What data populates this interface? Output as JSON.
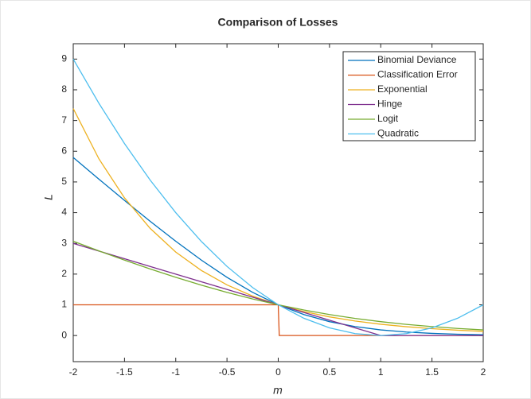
{
  "chart_data": {
    "type": "line",
    "title": "Comparison of Losses",
    "x_label": "m",
    "y_label": "L",
    "x": [
      -2,
      -1.75,
      -1.5,
      -1.25,
      -1,
      -0.75,
      -0.5,
      -0.25,
      0,
      0.25,
      0.5,
      0.75,
      1,
      1.25,
      1.5,
      1.75,
      2
    ],
    "series": [
      {
        "name": "Binomial Deviance",
        "color": "#0072BD",
        "values": [
          5.796,
          5.093,
          4.398,
          3.721,
          3.069,
          2.455,
          1.895,
          1.405,
          1,
          0.684,
          0.452,
          0.291,
          0.183,
          0.114,
          0.07,
          0.043,
          0.026
        ]
      },
      {
        "name": "Classification Error",
        "color": "#D95319",
        "x": [
          -2,
          0,
          0.01,
          2
        ],
        "values": [
          1,
          1,
          0,
          0
        ]
      },
      {
        "name": "Exponential",
        "color": "#EDB120",
        "values": [
          7.389,
          5.755,
          4.482,
          3.49,
          2.718,
          2.117,
          1.649,
          1.284,
          1,
          0.779,
          0.607,
          0.472,
          0.368,
          0.287,
          0.223,
          0.174,
          0.135
        ]
      },
      {
        "name": "Hinge",
        "color": "#7E2F8E",
        "values": [
          3,
          2.75,
          2.5,
          2.25,
          2,
          1.75,
          1.5,
          1.25,
          1,
          0.75,
          0.5,
          0.25,
          0,
          0,
          0,
          0,
          0
        ]
      },
      {
        "name": "Logit",
        "color": "#77AC30",
        "values": [
          3.069,
          2.756,
          2.455,
          2.167,
          1.895,
          1.64,
          1.405,
          1.192,
          1,
          0.831,
          0.684,
          0.558,
          0.452,
          0.363,
          0.291,
          0.231,
          0.183
        ]
      },
      {
        "name": "Quadratic",
        "color": "#4DBEEE",
        "values": [
          9,
          7.5625,
          6.25,
          5.0625,
          4,
          3.0625,
          2.25,
          1.5625,
          1,
          0.5625,
          0.25,
          0.0625,
          0,
          0.0625,
          0.25,
          0.5625,
          1
        ]
      }
    ],
    "xlim": [
      -2,
      2
    ],
    "ylim": [
      -0.85,
      9.5
    ],
    "xticks": [
      -2,
      -1.5,
      -1,
      -0.5,
      0,
      0.5,
      1,
      1.5,
      2
    ],
    "yticks": [
      0,
      1,
      2,
      3,
      4,
      5,
      6,
      7,
      8,
      9
    ],
    "legend": "upper-right"
  }
}
